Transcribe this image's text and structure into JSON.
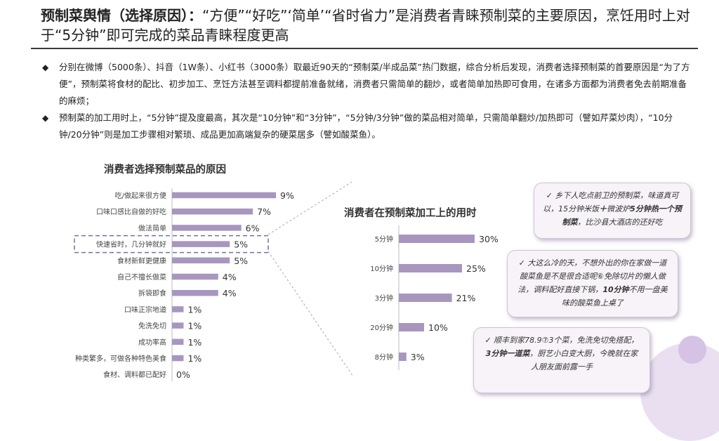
{
  "header": {
    "title_bold": "预制菜舆情（选择原因）：",
    "title_rest": "“方便”“好吃”‘简单’“省时省力”是消费者青睐预制菜的主要原因，烹饪用时上对于“5分钟”即可完成的菜品青睐程度更高"
  },
  "bullets": [
    "分别在微博（5000条）、抖音（1W条）、小红书（3000条）取最近90天的“预制菜/半成品菜”热门数据，综合分析后发现，消费者选择预制菜的首要原因是“为了方便”，预制菜将食材的配比、初步加工、烹饪方法甚至调料都提前准备就绪，消费者只需简单的翻炒，或者简单加热即可食用，在诸多方面都为消费者免去前期准备的麻烦；",
    "预制菜的加工用时上，“5分钟”提及度最高，其次是“10分钟”和“3分钟”，“5分钟/3分钟”做的菜品相对简单，只需简单翻炒/加热即可（譬如芹菜炒肉），“10分钟/20分钟”则是加工步骤相对繁琐、成品更加高端复杂的硬菜居多（譬如酸菜鱼）。"
  ],
  "bullet_marker": "◆",
  "chart_data": [
    {
      "type": "bar",
      "orientation": "horizontal",
      "title": "消费者选择预制菜品的原因",
      "categories": [
        "吃/做起来很方便",
        "口味口感比自做的好吃",
        "做法简单",
        "快速省时，几分钟就好",
        "食材新鲜更健康",
        "自己不擅长做菜",
        "拆袋即食",
        "口味正宗地道",
        "免洗免切",
        "成功率高",
        "种类繁多，可做各种特色美食",
        "食材、调料都已配好"
      ],
      "values": [
        9,
        7,
        6,
        5,
        5,
        4,
        4,
        1,
        1,
        1,
        1,
        0
      ],
      "value_labels": [
        "9%",
        "7%",
        "6%",
        "5%",
        "5%",
        "4%",
        "4%",
        "1%",
        "1%",
        "1%",
        "1%",
        "0%"
      ],
      "highlight_index": 3,
      "color": "#a896bf"
    },
    {
      "type": "bar",
      "orientation": "horizontal",
      "title": "消费者在预制菜加工上的用时",
      "categories": [
        "5分钟",
        "10分钟",
        "3分钟",
        "20分钟",
        "8分钟"
      ],
      "values": [
        30,
        25,
        21,
        10,
        3
      ],
      "value_labels": [
        "30%",
        "25%",
        "21%",
        "10%",
        "3%"
      ],
      "color": "#a896bf"
    }
  ],
  "comments": [
    {
      "check": "✓",
      "pre": "乡下人吃点前卫的预制菜，味道真可以，15分钟米饭",
      "b1": "＋",
      "mid1": "微波炉",
      "b2": "5分钟热一个预制菜",
      "post": "，比沙县大酒店的还好吃"
    },
    {
      "check": "✓",
      "pre": "大这么冷的天，不想外出的你在家做一道酸菜鱼是不是很合适呢",
      "mid1": "⑥",
      "mid2": "免除切片的懒人做法，调料配好直接下锅，",
      "b2": "10分钟",
      "post": "不用一盘美味的酸菜鱼上桌了"
    },
    {
      "check": "✓",
      "pre": "顺丰到家78.9",
      "mid1": "⑦",
      "mid2": "3个菜，免洗免切免搭配，",
      "b2": "3分钟一道菜",
      "post": "，厨艺小白变大厨，今晚就在家人朋友面前露一手"
    }
  ]
}
